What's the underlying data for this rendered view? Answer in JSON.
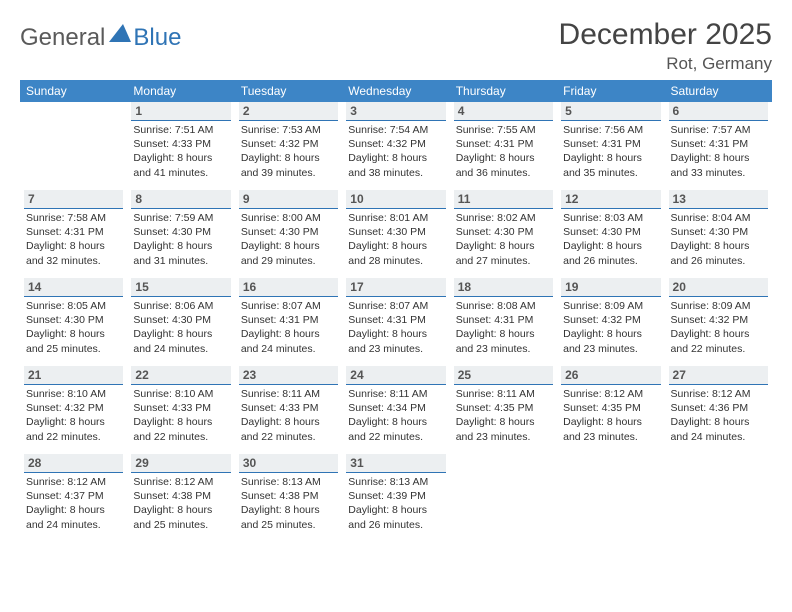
{
  "logo": {
    "text1": "General",
    "text2": "Blue"
  },
  "title": "December 2025",
  "location": "Rot, Germany",
  "headers": [
    "Sunday",
    "Monday",
    "Tuesday",
    "Wednesday",
    "Thursday",
    "Friday",
    "Saturday"
  ],
  "colors": {
    "header_bg": "#3d85c6",
    "header_fg": "#ffffff",
    "daynum_bg": "#eceff1",
    "daynum_border": "#2f74b5"
  },
  "weeks": [
    [
      {
        "n": "",
        "sr": "",
        "ss": "",
        "d1": "",
        "d2": "",
        "empty": true
      },
      {
        "n": "1",
        "sr": "Sunrise: 7:51 AM",
        "ss": "Sunset: 4:33 PM",
        "d1": "Daylight: 8 hours",
        "d2": "and 41 minutes."
      },
      {
        "n": "2",
        "sr": "Sunrise: 7:53 AM",
        "ss": "Sunset: 4:32 PM",
        "d1": "Daylight: 8 hours",
        "d2": "and 39 minutes."
      },
      {
        "n": "3",
        "sr": "Sunrise: 7:54 AM",
        "ss": "Sunset: 4:32 PM",
        "d1": "Daylight: 8 hours",
        "d2": "and 38 minutes."
      },
      {
        "n": "4",
        "sr": "Sunrise: 7:55 AM",
        "ss": "Sunset: 4:31 PM",
        "d1": "Daylight: 8 hours",
        "d2": "and 36 minutes."
      },
      {
        "n": "5",
        "sr": "Sunrise: 7:56 AM",
        "ss": "Sunset: 4:31 PM",
        "d1": "Daylight: 8 hours",
        "d2": "and 35 minutes."
      },
      {
        "n": "6",
        "sr": "Sunrise: 7:57 AM",
        "ss": "Sunset: 4:31 PM",
        "d1": "Daylight: 8 hours",
        "d2": "and 33 minutes."
      }
    ],
    [
      {
        "n": "7",
        "sr": "Sunrise: 7:58 AM",
        "ss": "Sunset: 4:31 PM",
        "d1": "Daylight: 8 hours",
        "d2": "and 32 minutes."
      },
      {
        "n": "8",
        "sr": "Sunrise: 7:59 AM",
        "ss": "Sunset: 4:30 PM",
        "d1": "Daylight: 8 hours",
        "d2": "and 31 minutes."
      },
      {
        "n": "9",
        "sr": "Sunrise: 8:00 AM",
        "ss": "Sunset: 4:30 PM",
        "d1": "Daylight: 8 hours",
        "d2": "and 29 minutes."
      },
      {
        "n": "10",
        "sr": "Sunrise: 8:01 AM",
        "ss": "Sunset: 4:30 PM",
        "d1": "Daylight: 8 hours",
        "d2": "and 28 minutes."
      },
      {
        "n": "11",
        "sr": "Sunrise: 8:02 AM",
        "ss": "Sunset: 4:30 PM",
        "d1": "Daylight: 8 hours",
        "d2": "and 27 minutes."
      },
      {
        "n": "12",
        "sr": "Sunrise: 8:03 AM",
        "ss": "Sunset: 4:30 PM",
        "d1": "Daylight: 8 hours",
        "d2": "and 26 minutes."
      },
      {
        "n": "13",
        "sr": "Sunrise: 8:04 AM",
        "ss": "Sunset: 4:30 PM",
        "d1": "Daylight: 8 hours",
        "d2": "and 26 minutes."
      }
    ],
    [
      {
        "n": "14",
        "sr": "Sunrise: 8:05 AM",
        "ss": "Sunset: 4:30 PM",
        "d1": "Daylight: 8 hours",
        "d2": "and 25 minutes."
      },
      {
        "n": "15",
        "sr": "Sunrise: 8:06 AM",
        "ss": "Sunset: 4:30 PM",
        "d1": "Daylight: 8 hours",
        "d2": "and 24 minutes."
      },
      {
        "n": "16",
        "sr": "Sunrise: 8:07 AM",
        "ss": "Sunset: 4:31 PM",
        "d1": "Daylight: 8 hours",
        "d2": "and 24 minutes."
      },
      {
        "n": "17",
        "sr": "Sunrise: 8:07 AM",
        "ss": "Sunset: 4:31 PM",
        "d1": "Daylight: 8 hours",
        "d2": "and 23 minutes."
      },
      {
        "n": "18",
        "sr": "Sunrise: 8:08 AM",
        "ss": "Sunset: 4:31 PM",
        "d1": "Daylight: 8 hours",
        "d2": "and 23 minutes."
      },
      {
        "n": "19",
        "sr": "Sunrise: 8:09 AM",
        "ss": "Sunset: 4:32 PM",
        "d1": "Daylight: 8 hours",
        "d2": "and 23 minutes."
      },
      {
        "n": "20",
        "sr": "Sunrise: 8:09 AM",
        "ss": "Sunset: 4:32 PM",
        "d1": "Daylight: 8 hours",
        "d2": "and 22 minutes."
      }
    ],
    [
      {
        "n": "21",
        "sr": "Sunrise: 8:10 AM",
        "ss": "Sunset: 4:32 PM",
        "d1": "Daylight: 8 hours",
        "d2": "and 22 minutes."
      },
      {
        "n": "22",
        "sr": "Sunrise: 8:10 AM",
        "ss": "Sunset: 4:33 PM",
        "d1": "Daylight: 8 hours",
        "d2": "and 22 minutes."
      },
      {
        "n": "23",
        "sr": "Sunrise: 8:11 AM",
        "ss": "Sunset: 4:33 PM",
        "d1": "Daylight: 8 hours",
        "d2": "and 22 minutes."
      },
      {
        "n": "24",
        "sr": "Sunrise: 8:11 AM",
        "ss": "Sunset: 4:34 PM",
        "d1": "Daylight: 8 hours",
        "d2": "and 22 minutes."
      },
      {
        "n": "25",
        "sr": "Sunrise: 8:11 AM",
        "ss": "Sunset: 4:35 PM",
        "d1": "Daylight: 8 hours",
        "d2": "and 23 minutes."
      },
      {
        "n": "26",
        "sr": "Sunrise: 8:12 AM",
        "ss": "Sunset: 4:35 PM",
        "d1": "Daylight: 8 hours",
        "d2": "and 23 minutes."
      },
      {
        "n": "27",
        "sr": "Sunrise: 8:12 AM",
        "ss": "Sunset: 4:36 PM",
        "d1": "Daylight: 8 hours",
        "d2": "and 24 minutes."
      }
    ],
    [
      {
        "n": "28",
        "sr": "Sunrise: 8:12 AM",
        "ss": "Sunset: 4:37 PM",
        "d1": "Daylight: 8 hours",
        "d2": "and 24 minutes."
      },
      {
        "n": "29",
        "sr": "Sunrise: 8:12 AM",
        "ss": "Sunset: 4:38 PM",
        "d1": "Daylight: 8 hours",
        "d2": "and 25 minutes."
      },
      {
        "n": "30",
        "sr": "Sunrise: 8:13 AM",
        "ss": "Sunset: 4:38 PM",
        "d1": "Daylight: 8 hours",
        "d2": "and 25 minutes."
      },
      {
        "n": "31",
        "sr": "Sunrise: 8:13 AM",
        "ss": "Sunset: 4:39 PM",
        "d1": "Daylight: 8 hours",
        "d2": "and 26 minutes."
      },
      {
        "n": "",
        "sr": "",
        "ss": "",
        "d1": "",
        "d2": "",
        "empty": true
      },
      {
        "n": "",
        "sr": "",
        "ss": "",
        "d1": "",
        "d2": "",
        "empty": true
      },
      {
        "n": "",
        "sr": "",
        "ss": "",
        "d1": "",
        "d2": "",
        "empty": true
      }
    ]
  ]
}
